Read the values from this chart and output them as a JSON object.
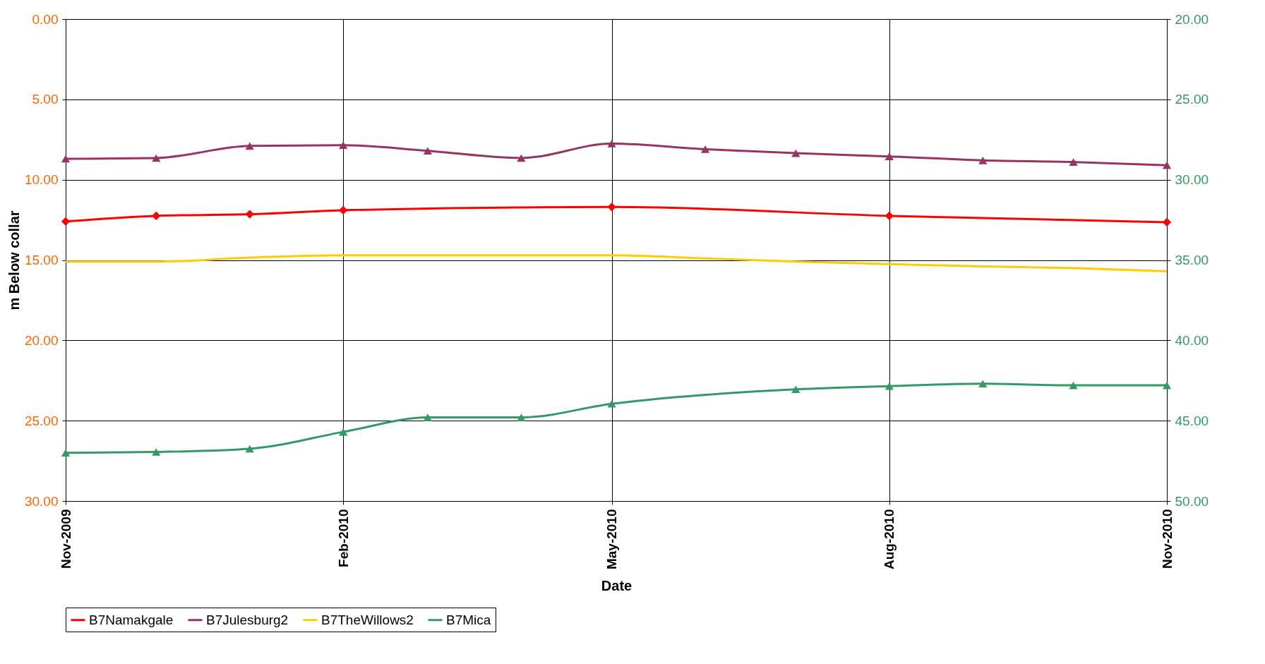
{
  "chart_data": {
    "type": "line",
    "xlabel": "Date",
    "ylabel": "m Below collar",
    "ylim": [
      30,
      0
    ],
    "yticks": [
      {
        "value": 0,
        "label": "0.00"
      },
      {
        "value": 5,
        "label": "5.00"
      },
      {
        "value": 10,
        "label": "10.00"
      },
      {
        "value": 15,
        "label": "15.00"
      },
      {
        "value": 20,
        "label": "20.00"
      },
      {
        "value": 25,
        "label": "25.00"
      },
      {
        "value": 30,
        "label": "30.00"
      }
    ],
    "y2lim": [
      50,
      20
    ],
    "y2ticks": [
      {
        "value": 20,
        "label": "20.00"
      },
      {
        "value": 25,
        "label": "25.00"
      },
      {
        "value": 30,
        "label": "30.00"
      },
      {
        "value": 35,
        "label": "35.00"
      },
      {
        "value": 40,
        "label": "40.00"
      },
      {
        "value": 45,
        "label": "45.00"
      },
      {
        "value": 50,
        "label": "50.00"
      }
    ],
    "xlim": [
      "2009-11",
      "2010-11"
    ],
    "xticks": [
      {
        "value": "2009-11",
        "label": "Nov-2009"
      },
      {
        "value": "2010-02",
        "label": "Feb-2010"
      },
      {
        "value": "2010-05",
        "label": "May-2010"
      },
      {
        "value": "2010-08",
        "label": "Aug-2010"
      },
      {
        "value": "2010-11",
        "label": "Nov-2010"
      }
    ],
    "grid": true,
    "legend": "bottom",
    "series": [
      {
        "name": "B7Namakgale",
        "color": "#ff0000",
        "marker": "diamond",
        "x": [
          "2009-11",
          "2009-12",
          "2010-01",
          "2010-02",
          "2010-05",
          "2010-08",
          "2010-11"
        ],
        "values": [
          12.6,
          12.25,
          12.15,
          11.9,
          11.7,
          12.25,
          12.65
        ]
      },
      {
        "name": "B7Julesburg2",
        "color": "#993366",
        "marker": "triangle",
        "x": [
          "2009-11",
          "2009-12",
          "2010-01",
          "2010-02",
          "2010-03",
          "2010-04",
          "2010-05",
          "2010-06",
          "2010-07",
          "2010-08",
          "2010-09",
          "2010-10",
          "2010-11"
        ],
        "values": [
          8.7,
          8.65,
          7.9,
          7.85,
          8.2,
          8.65,
          7.75,
          8.1,
          8.35,
          8.55,
          8.8,
          8.9,
          9.1
        ]
      },
      {
        "name": "B7TheWillows2",
        "color": "#ffcc00",
        "marker": "none",
        "x": [
          "2009-11",
          "2009-12",
          "2010-01",
          "2010-02",
          "2010-03",
          "2010-04",
          "2010-05",
          "2010-06",
          "2010-07",
          "2010-08",
          "2010-09",
          "2010-10",
          "2010-11"
        ],
        "values": [
          15.1,
          15.1,
          14.85,
          14.7,
          14.7,
          14.7,
          14.7,
          14.9,
          15.1,
          15.25,
          15.4,
          15.5,
          15.7
        ]
      },
      {
        "name": "B7Mica",
        "color": "#339966",
        "marker": "triangle",
        "axis": "y2",
        "x": [
          "2009-11",
          "2009-12",
          "2010-01",
          "2010-02",
          "2010-03",
          "2010-04",
          "2010-05",
          "2010-07",
          "2010-08",
          "2010-09",
          "2010-10",
          "2010-11"
        ],
        "values": [
          47.0,
          46.95,
          46.75,
          45.7,
          44.8,
          44.8,
          43.95,
          43.05,
          42.85,
          42.7,
          42.8,
          42.8
        ]
      }
    ]
  }
}
